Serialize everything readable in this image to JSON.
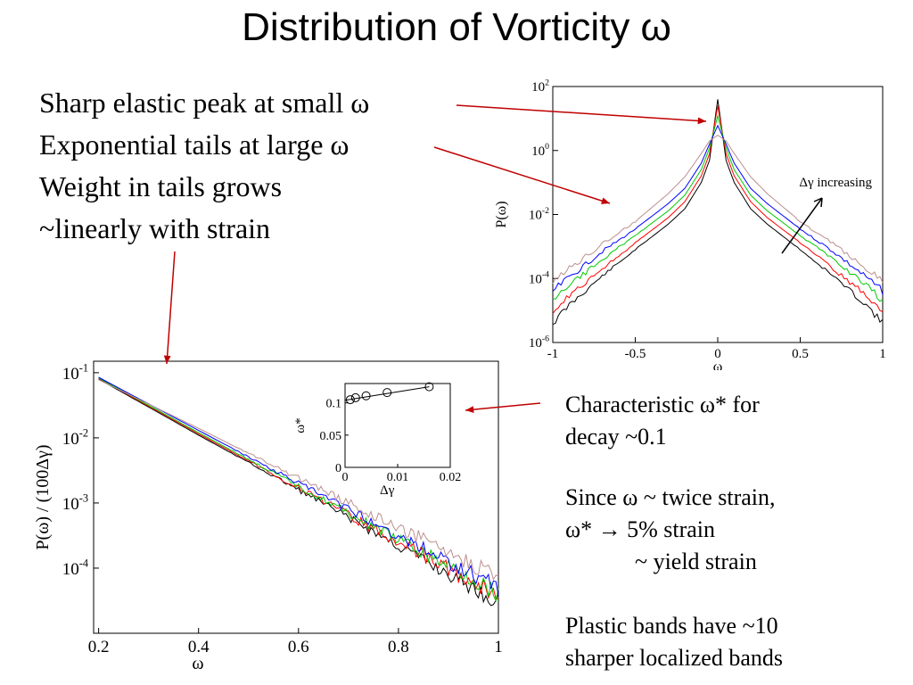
{
  "slide": {
    "title": "Distribution of Vorticity ω",
    "bullets": [
      "Sharp elastic peak at small ω",
      "Exponential tails at large ω",
      "Weight in tails grows",
      "~linearly with strain"
    ],
    "notes": {
      "block1": [
        "Characteristic ω* for",
        "decay ~0.1"
      ],
      "block2": [
        "Since ω ~ twice strain,",
        "ω* → 5% strain",
        "~ yield strain"
      ],
      "block3": [
        "Plastic bands have ~10",
        "sharper localized bands"
      ]
    }
  },
  "colors": {
    "arrow": "#c00000",
    "series": [
      "#000000",
      "#ff0000",
      "#00cc00",
      "#0000ff",
      "#bc8f8f"
    ]
  },
  "chart_data": [
    {
      "type": "line",
      "title": "",
      "xlabel": "ω",
      "ylabel": "P(ω)",
      "xlim": [
        -1,
        1
      ],
      "ylim": [
        1e-06,
        100
      ],
      "yscale": "log",
      "xticks": [
        -1,
        -0.5,
        0,
        0.5,
        1
      ],
      "xtick_labels": [
        "-1",
        "-0.5",
        "0",
        "0.5",
        "1"
      ],
      "yticks": [
        1e-06,
        0.0001,
        0.01,
        1,
        100
      ],
      "ytick_mantissa": [
        "10",
        "10",
        "10",
        "10",
        "10"
      ],
      "ytick_exponents": [
        "-6",
        "-4",
        "-2",
        "0",
        "2"
      ],
      "annotation": "Δγ increasing",
      "series": [
        {
          "color": "#000000",
          "x": [
            0,
            0.05,
            0.1,
            0.2,
            0.3,
            0.5,
            0.7,
            0.9,
            1.0
          ],
          "y": [
            40,
            0.5,
            0.1,
            0.015,
            0.005,
            0.0008,
            0.00012,
            1.5e-05,
            4e-06
          ]
        },
        {
          "color": "#ff0000",
          "x": [
            0,
            0.05,
            0.1,
            0.2,
            0.3,
            0.5,
            0.7,
            0.9,
            1.0
          ],
          "y": [
            25,
            0.8,
            0.16,
            0.025,
            0.008,
            0.0013,
            0.0002,
            3e-05,
            1e-05
          ]
        },
        {
          "color": "#00cc00",
          "x": [
            0,
            0.05,
            0.1,
            0.2,
            0.3,
            0.5,
            0.7,
            0.9,
            1.0
          ],
          "y": [
            12,
            1.2,
            0.25,
            0.04,
            0.013,
            0.0022,
            0.0004,
            6e-05,
            2e-05
          ]
        },
        {
          "color": "#0000ff",
          "x": [
            0,
            0.05,
            0.1,
            0.2,
            0.3,
            0.5,
            0.7,
            0.9,
            1.0
          ],
          "y": [
            6,
            1.6,
            0.4,
            0.065,
            0.022,
            0.0035,
            0.0007,
            0.00011,
            4e-05
          ]
        },
        {
          "color": "#bc8f8f",
          "x": [
            0,
            0.05,
            0.1,
            0.2,
            0.3,
            0.5,
            0.7,
            0.9,
            1.0
          ],
          "y": [
            3,
            2.0,
            0.8,
            0.15,
            0.045,
            0.006,
            0.0012,
            0.0002,
            8e-05
          ]
        }
      ]
    },
    {
      "type": "line",
      "title": "",
      "xlabel": "ω",
      "ylabel": "P(ω) / (100Δγ)",
      "xlim": [
        0.19,
        1.0
      ],
      "ylim": [
        1e-05,
        0.15
      ],
      "yscale": "log",
      "xticks": [
        0.2,
        0.4,
        0.6,
        0.8,
        1
      ],
      "xtick_labels": [
        "0.2",
        "0.4",
        "0.6",
        "0.8",
        "1"
      ],
      "yticks": [
        0.0001,
        0.001,
        0.01,
        0.1
      ],
      "ytick_mantissa": [
        "10",
        "10",
        "10",
        "10"
      ],
      "ytick_exponents": [
        "-4",
        "-3",
        "-2",
        "-1"
      ],
      "series": [
        {
          "color": "#000000",
          "x": [
            0.2,
            0.4,
            0.6,
            0.8,
            1.0
          ],
          "y": [
            0.08,
            0.011,
            0.0016,
            0.00022,
            3e-05
          ]
        },
        {
          "color": "#ff0000",
          "x": [
            0.2,
            0.4,
            0.6,
            0.8,
            1.0
          ],
          "y": [
            0.082,
            0.0115,
            0.0017,
            0.00025,
            3.8e-05
          ]
        },
        {
          "color": "#00cc00",
          "x": [
            0.2,
            0.4,
            0.6,
            0.8,
            1.0
          ],
          "y": [
            0.083,
            0.012,
            0.0018,
            0.00027,
            4.2e-05
          ]
        },
        {
          "color": "#0000ff",
          "x": [
            0.2,
            0.4,
            0.6,
            0.8,
            1.0
          ],
          "y": [
            0.085,
            0.013,
            0.002,
            0.00032,
            5e-05
          ]
        },
        {
          "color": "#bc8f8f",
          "x": [
            0.2,
            0.4,
            0.6,
            0.8,
            1.0
          ],
          "y": [
            0.078,
            0.014,
            0.0024,
            0.00042,
            7.5e-05
          ]
        }
      ]
    },
    {
      "type": "scatter",
      "title": "",
      "xlabel": "Δγ",
      "ylabel": "ω*",
      "xlim": [
        0,
        0.02
      ],
      "ylim": [
        0,
        0.13
      ],
      "xticks": [
        0,
        0.01,
        0.02
      ],
      "xtick_labels": [
        "0",
        "0.01",
        "0.02"
      ],
      "yticks": [
        0,
        0.05,
        0.1
      ],
      "ytick_labels": [
        "0",
        "0.05",
        "0.1"
      ],
      "x": [
        0.001,
        0.002,
        0.004,
        0.008,
        0.016
      ],
      "y": [
        0.105,
        0.108,
        0.111,
        0.116,
        0.125
      ],
      "fit": {
        "x": [
          0,
          0.016
        ],
        "y": [
          0.104,
          0.125
        ]
      }
    }
  ]
}
